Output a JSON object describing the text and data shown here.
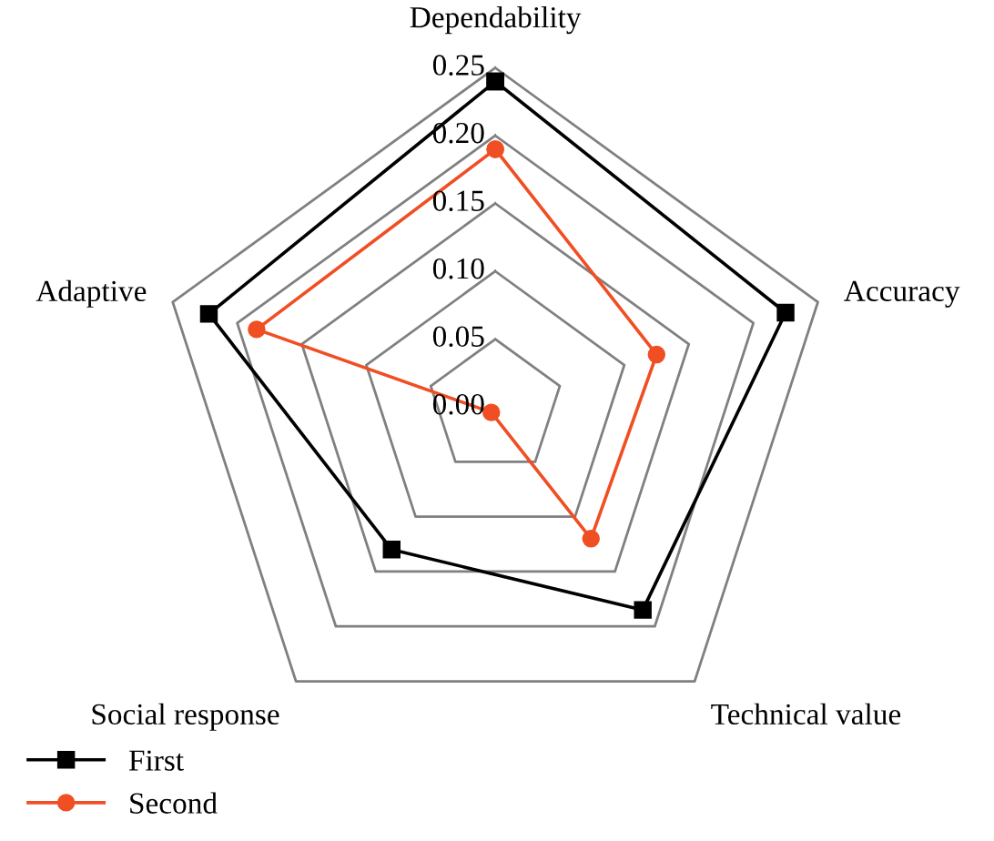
{
  "chart_data": {
    "type": "radar",
    "categories": [
      "Dependability",
      "Accuracy",
      "Technical value",
      "Social response",
      "Adaptive"
    ],
    "series": [
      {
        "name": "First",
        "color": "#000000",
        "marker": "square",
        "values": [
          0.24,
          0.225,
          0.185,
          0.13,
          0.222
        ]
      },
      {
        "name": "Second",
        "color": "#f04e23",
        "marker": "circle",
        "values": [
          0.19,
          0.125,
          0.12,
          0.005,
          0.185
        ]
      }
    ],
    "ylim": [
      0,
      0.25
    ],
    "yticks": [
      {
        "value": 0,
        "label": "0.00"
      },
      {
        "value": 0.05,
        "label": "0.05"
      },
      {
        "value": 0.1,
        "label": "0.10"
      },
      {
        "value": 0.15,
        "label": "0.15"
      },
      {
        "value": 0.2,
        "label": "0.20"
      },
      {
        "value": 0.25,
        "label": "0.25"
      }
    ],
    "grid": true,
    "legend": "bottom left"
  }
}
